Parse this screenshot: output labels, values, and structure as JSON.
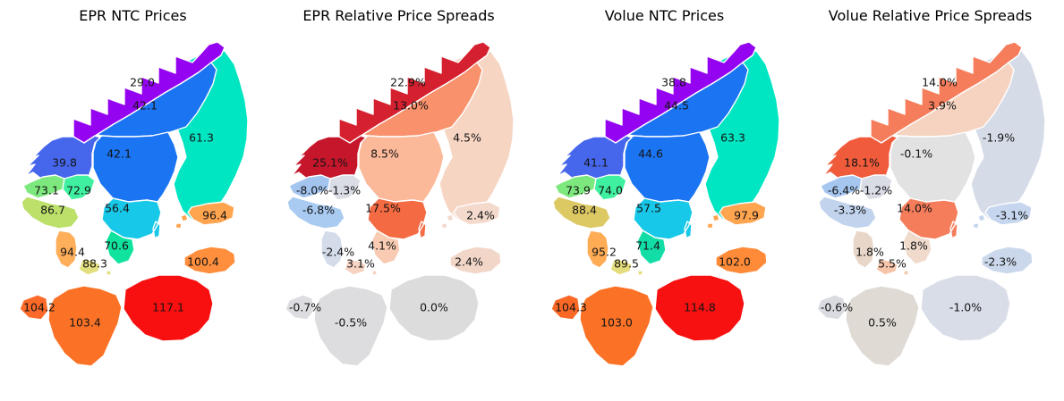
{
  "figure": {
    "background": "#ffffff",
    "label_color": "#141414"
  },
  "chart_data": [
    {
      "type": "choropleth-map",
      "title": "EPR NTC Prices",
      "value_kind": "price",
      "colormap": "rainbow",
      "regions": [
        {
          "id": "FI",
          "label": "61.3",
          "value": 61.3,
          "color": "#00E5C2"
        },
        {
          "id": "NO4",
          "label": "29.0",
          "value": 29.0,
          "color": "#9404F0"
        },
        {
          "id": "SE1",
          "label": "42.1",
          "value": 42.1,
          "color": "#1B74F2"
        },
        {
          "id": "SE2",
          "label": "42.1",
          "value": 42.1,
          "color": "#1B74F2"
        },
        {
          "id": "NO3",
          "label": "39.8",
          "value": 39.8,
          "color": "#4667EC"
        },
        {
          "id": "NO5",
          "label": "73.1",
          "value": 73.1,
          "color": "#7DE87D"
        },
        {
          "id": "NO1",
          "label": "72.9",
          "value": 72.9,
          "color": "#3EF0A0"
        },
        {
          "id": "NO2",
          "label": "86.7",
          "value": 86.7,
          "color": "#BCE06A"
        },
        {
          "id": "SE3",
          "label": "56.4",
          "value": 56.4,
          "color": "#18C8E8"
        },
        {
          "id": "SE4",
          "label": "70.6",
          "value": 70.6,
          "color": "#0FE39E"
        },
        {
          "id": "DK1",
          "label": "94.4",
          "value": 94.4,
          "color": "#FFAE59"
        },
        {
          "id": "DK2",
          "label": "88.3",
          "value": 88.3,
          "color": "#E2DF7E"
        },
        {
          "id": "EE",
          "label": "96.4",
          "value": 96.4,
          "color": "#FFA44F"
        },
        {
          "id": "LV",
          "label": "100.4",
          "value": 100.4,
          "color": "#FF8F3D"
        },
        {
          "id": "PL",
          "label": "117.1",
          "value": 117.1,
          "color": "#F80F0F"
        },
        {
          "id": "DE",
          "label": "103.4",
          "value": 103.4,
          "color": "#FB7226"
        },
        {
          "id": "NL",
          "label": "104.2",
          "value": 104.2,
          "color": "#FB6A28"
        }
      ]
    },
    {
      "type": "choropleth-map",
      "title": "EPR Relative Price Spreads",
      "value_kind": "percent",
      "colormap": "red-blue-diverging",
      "regions": [
        {
          "id": "FI",
          "label": "4.5%",
          "value": 4.5,
          "color": "#F7D5C3"
        },
        {
          "id": "NO4",
          "label": "22.9%",
          "value": 22.9,
          "color": "#D5202F"
        },
        {
          "id": "SE1",
          "label": "13.0%",
          "value": 13.0,
          "color": "#F9916C"
        },
        {
          "id": "SE2",
          "label": "8.5%",
          "value": 8.5,
          "color": "#FBB99A"
        },
        {
          "id": "NO3",
          "label": "25.1%",
          "value": 25.1,
          "color": "#C5162B"
        },
        {
          "id": "NO5",
          "label": "-8.0%",
          "value": -8.0,
          "color": "#A2C4EE"
        },
        {
          "id": "NO1",
          "label": "-1.3%",
          "value": -1.3,
          "color": "#DADDE6"
        },
        {
          "id": "NO2",
          "label": "-6.8%",
          "value": -6.8,
          "color": "#A9CBF1"
        },
        {
          "id": "SE3",
          "label": "17.5%",
          "value": 17.5,
          "color": "#F46A42"
        },
        {
          "id": "SE4",
          "label": "4.1%",
          "value": 4.1,
          "color": "#F9CBB2"
        },
        {
          "id": "DK1",
          "label": "-2.4%",
          "value": -2.4,
          "color": "#D4DCEA"
        },
        {
          "id": "DK2",
          "label": "3.1%",
          "value": 3.1,
          "color": "#F6D3C2"
        },
        {
          "id": "EE",
          "label": "2.4%",
          "value": 2.4,
          "color": "#F3DACD"
        },
        {
          "id": "LV",
          "label": "2.4%",
          "value": 2.4,
          "color": "#F2D6C8"
        },
        {
          "id": "PL",
          "label": "0.0%",
          "value": 0.0,
          "color": "#DCDCDC"
        },
        {
          "id": "DE",
          "label": "-0.5%",
          "value": -0.5,
          "color": "#DDDDDF"
        },
        {
          "id": "NL",
          "label": "-0.7%",
          "value": -0.7,
          "color": "#DDDDE1"
        }
      ]
    },
    {
      "type": "choropleth-map",
      "title": "Volue NTC Prices",
      "value_kind": "price",
      "colormap": "rainbow",
      "regions": [
        {
          "id": "FI",
          "label": "63.3",
          "value": 63.3,
          "color": "#00E5C2"
        },
        {
          "id": "NO4",
          "label": "38.8",
          "value": 38.8,
          "color": "#9404F0"
        },
        {
          "id": "SE1",
          "label": "44.5",
          "value": 44.5,
          "color": "#1B74F2"
        },
        {
          "id": "SE2",
          "label": "44.6",
          "value": 44.6,
          "color": "#1B74F2"
        },
        {
          "id": "NO3",
          "label": "41.1",
          "value": 41.1,
          "color": "#4667EC"
        },
        {
          "id": "NO5",
          "label": "73.9",
          "value": 73.9,
          "color": "#7DE87D"
        },
        {
          "id": "NO1",
          "label": "74.0",
          "value": 74.0,
          "color": "#3EF0A0"
        },
        {
          "id": "NO2",
          "label": "88.4",
          "value": 88.4,
          "color": "#DDC963"
        },
        {
          "id": "SE3",
          "label": "57.5",
          "value": 57.5,
          "color": "#18C8E8"
        },
        {
          "id": "SE4",
          "label": "71.4",
          "value": 71.4,
          "color": "#12DDA6"
        },
        {
          "id": "DK1",
          "label": "95.2",
          "value": 95.2,
          "color": "#FFAC55"
        },
        {
          "id": "DK2",
          "label": "89.5",
          "value": 89.5,
          "color": "#E4DC7C"
        },
        {
          "id": "EE",
          "label": "97.9",
          "value": 97.9,
          "color": "#FFA44F"
        },
        {
          "id": "LV",
          "label": "102.0",
          "value": 102.0,
          "color": "#FF8B38"
        },
        {
          "id": "PL",
          "label": "114.8",
          "value": 114.8,
          "color": "#F81111"
        },
        {
          "id": "DE",
          "label": "103.0",
          "value": 103.0,
          "color": "#FB7226"
        },
        {
          "id": "NL",
          "label": "104.3",
          "value": 104.3,
          "color": "#FA6826"
        }
      ]
    },
    {
      "type": "choropleth-map",
      "title": "Volue Relative Price Spreads",
      "value_kind": "percent",
      "colormap": "red-blue-diverging",
      "regions": [
        {
          "id": "FI",
          "label": "-1.9%",
          "value": -1.9,
          "color": "#D5DCE8"
        },
        {
          "id": "NO4",
          "label": "14.0%",
          "value": 14.0,
          "color": "#F57D5B"
        },
        {
          "id": "SE1",
          "label": "3.9%",
          "value": 3.9,
          "color": "#F5D3C0"
        },
        {
          "id": "SE2",
          "label": "-0.1%",
          "value": -0.1,
          "color": "#E3E2E3"
        },
        {
          "id": "NO3",
          "label": "18.1%",
          "value": 18.1,
          "color": "#EF5B3B"
        },
        {
          "id": "NO5",
          "label": "-6.4%",
          "value": -6.4,
          "color": "#A5C6EF"
        },
        {
          "id": "NO1",
          "label": "-1.2%",
          "value": -1.2,
          "color": "#D9DCE5"
        },
        {
          "id": "NO2",
          "label": "-3.3%",
          "value": -3.3,
          "color": "#C2D3ED"
        },
        {
          "id": "SE3",
          "label": "14.0%",
          "value": 14.0,
          "color": "#F57D5B"
        },
        {
          "id": "SE4",
          "label": "1.8%",
          "value": 1.8,
          "color": "#EFDACC"
        },
        {
          "id": "DK1",
          "label": "1.8%",
          "value": 1.8,
          "color": "#E8D7C9"
        },
        {
          "id": "DK2",
          "label": "5.5%",
          "value": 5.5,
          "color": "#F6C5AA"
        },
        {
          "id": "EE",
          "label": "-3.1%",
          "value": -3.1,
          "color": "#C6D6EE"
        },
        {
          "id": "LV",
          "label": "-2.3%",
          "value": -2.3,
          "color": "#CBD8EC"
        },
        {
          "id": "PL",
          "label": "-1.0%",
          "value": -1.0,
          "color": "#D8DDE8"
        },
        {
          "id": "DE",
          "label": "0.5%",
          "value": 0.5,
          "color": "#DFDAD4"
        },
        {
          "id": "NL",
          "label": "-0.6%",
          "value": -0.6,
          "color": "#DADBE1"
        }
      ]
    }
  ]
}
